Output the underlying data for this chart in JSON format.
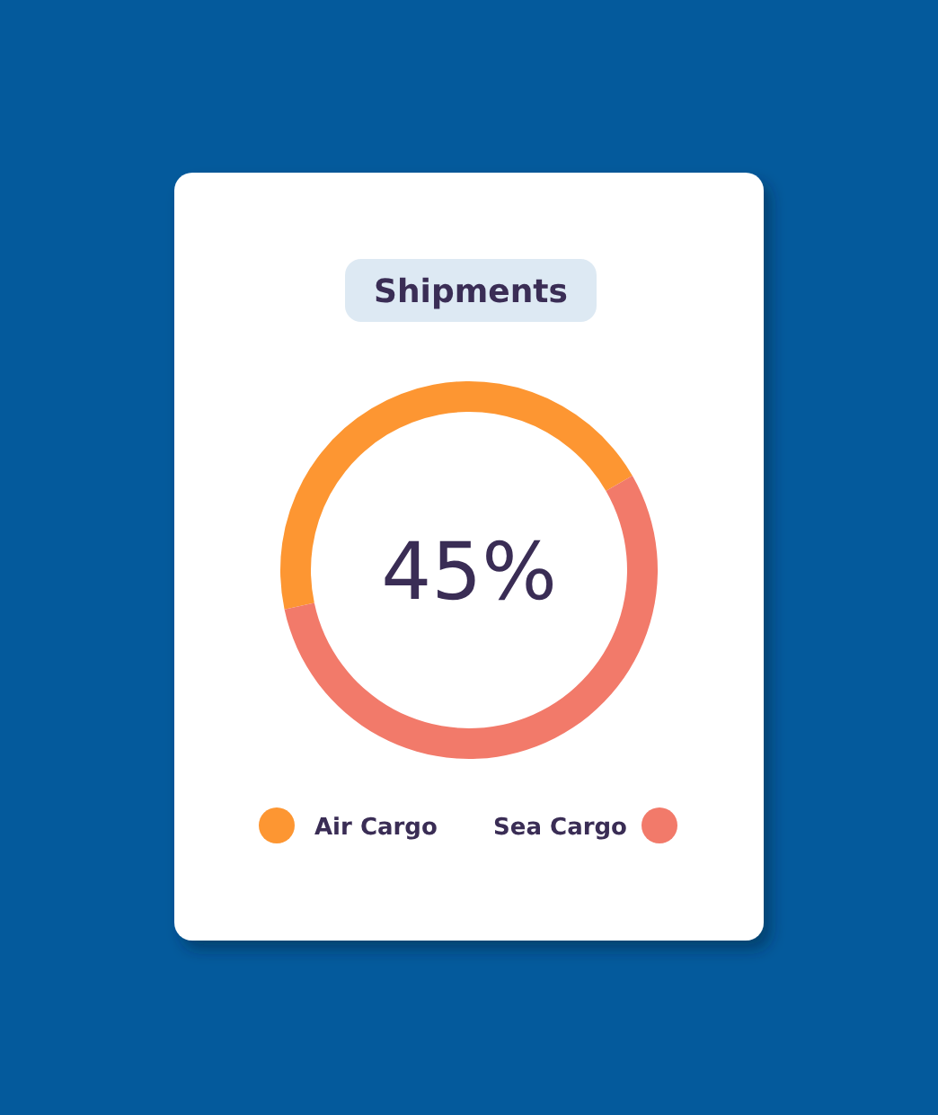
{
  "chart_data": {
    "type": "donut",
    "title": "Shipments",
    "categories": [
      "Air Cargo",
      "Sea Cargo"
    ],
    "values": [
      45,
      55
    ],
    "colors": [
      "#fd9632",
      "#f27a6a"
    ],
    "annotations": [
      "45%"
    ],
    "legend": "bottom"
  }
}
